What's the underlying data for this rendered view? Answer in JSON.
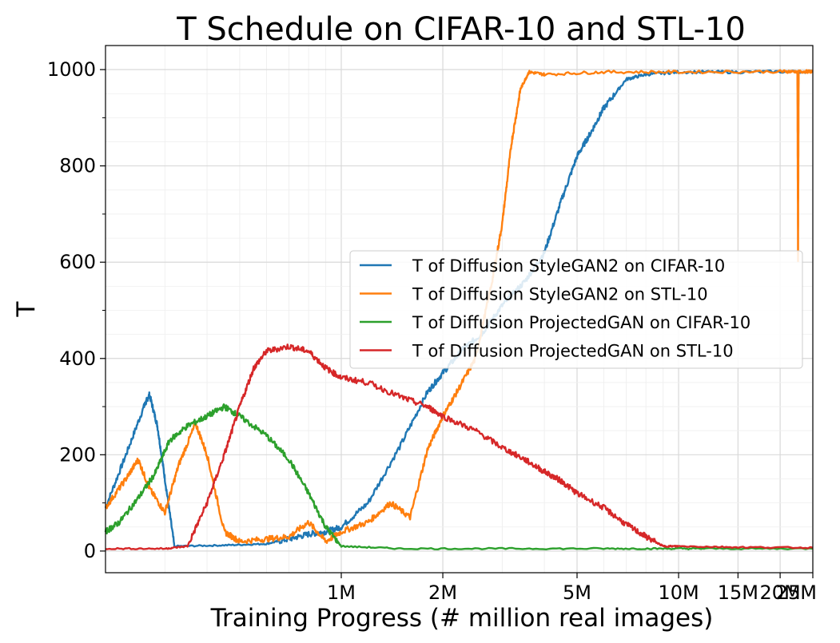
{
  "chart_data": {
    "type": "line",
    "title": "T Schedule on CIFAR-10 and STL-10",
    "xlabel": "Training Progress (# million real images)",
    "ylabel": "T",
    "xscale": "log",
    "xlim": [
      0.2,
      25
    ],
    "ylim": [
      -45,
      1050
    ],
    "grid": true,
    "legend_position": "center-right",
    "x_ticks": [
      {
        "value": 1,
        "label": "1M"
      },
      {
        "value": 2,
        "label": "2M"
      },
      {
        "value": 5,
        "label": "5M"
      },
      {
        "value": 10,
        "label": "10M"
      },
      {
        "value": 15,
        "label": "15M"
      },
      {
        "value": 20,
        "label": "20M"
      },
      {
        "value": 25,
        "label": "25M"
      }
    ],
    "y_ticks": [
      0,
      200,
      400,
      600,
      800,
      1000
    ],
    "series": [
      {
        "name": "T of Diffusion StyleGAN2 on CIFAR-10",
        "color": "#1f77b4",
        "points": [
          [
            0.2,
            90
          ],
          [
            0.23,
            200
          ],
          [
            0.26,
            300
          ],
          [
            0.27,
            325
          ],
          [
            0.285,
            260
          ],
          [
            0.3,
            150
          ],
          [
            0.32,
            10
          ],
          [
            0.45,
            12
          ],
          [
            0.6,
            15
          ],
          [
            0.7,
            25
          ],
          [
            0.8,
            35
          ],
          [
            0.9,
            40
          ],
          [
            1.0,
            50
          ],
          [
            1.2,
            100
          ],
          [
            1.5,
            220
          ],
          [
            1.8,
            330
          ],
          [
            2.0,
            370
          ],
          [
            2.3,
            420
          ],
          [
            2.6,
            450
          ],
          [
            3.0,
            510
          ],
          [
            3.5,
            560
          ],
          [
            4.0,
            620
          ],
          [
            4.5,
            730
          ],
          [
            5.0,
            820
          ],
          [
            5.5,
            870
          ],
          [
            6.0,
            920
          ],
          [
            7.0,
            980
          ],
          [
            8.0,
            990
          ],
          [
            10.0,
            995
          ],
          [
            15.0,
            995
          ],
          [
            25.0,
            996
          ]
        ]
      },
      {
        "name": "T of Diffusion StyleGAN2 on STL-10",
        "color": "#ff7f0e",
        "points": [
          [
            0.2,
            90
          ],
          [
            0.23,
            150
          ],
          [
            0.25,
            190
          ],
          [
            0.27,
            130
          ],
          [
            0.3,
            80
          ],
          [
            0.33,
            180
          ],
          [
            0.37,
            265
          ],
          [
            0.4,
            200
          ],
          [
            0.45,
            40
          ],
          [
            0.5,
            20
          ],
          [
            0.6,
            25
          ],
          [
            0.7,
            30
          ],
          [
            0.8,
            60
          ],
          [
            0.9,
            20
          ],
          [
            1.0,
            40
          ],
          [
            1.2,
            60
          ],
          [
            1.4,
            100
          ],
          [
            1.6,
            70
          ],
          [
            1.8,
            210
          ],
          [
            2.0,
            280
          ],
          [
            2.2,
            330
          ],
          [
            2.5,
            400
          ],
          [
            2.8,
            560
          ],
          [
            3.0,
            680
          ],
          [
            3.2,
            850
          ],
          [
            3.4,
            960
          ],
          [
            3.6,
            995
          ],
          [
            4.0,
            990
          ],
          [
            6.0,
            995
          ],
          [
            10.0,
            995
          ],
          [
            20.0,
            996
          ],
          [
            22.5,
            996
          ],
          [
            22.6,
            600
          ],
          [
            22.7,
            996
          ],
          [
            25.0,
            996
          ]
        ]
      },
      {
        "name": "T of Diffusion ProjectedGAN on CIFAR-10",
        "color": "#2ca02c",
        "points": [
          [
            0.2,
            40
          ],
          [
            0.22,
            60
          ],
          [
            0.25,
            110
          ],
          [
            0.28,
            160
          ],
          [
            0.31,
            230
          ],
          [
            0.35,
            260
          ],
          [
            0.4,
            280
          ],
          [
            0.45,
            300
          ],
          [
            0.5,
            280
          ],
          [
            0.6,
            240
          ],
          [
            0.7,
            190
          ],
          [
            0.8,
            120
          ],
          [
            0.9,
            50
          ],
          [
            1.0,
            10
          ],
          [
            1.5,
            5
          ],
          [
            3.0,
            5
          ],
          [
            6.0,
            5
          ],
          [
            9.0,
            5
          ],
          [
            12.0,
            5
          ],
          [
            25.0,
            5
          ]
        ]
      },
      {
        "name": "T of Diffusion ProjectedGAN on STL-10",
        "color": "#d62728",
        "points": [
          [
            0.2,
            5
          ],
          [
            0.3,
            5
          ],
          [
            0.35,
            10
          ],
          [
            0.4,
            100
          ],
          [
            0.45,
            200
          ],
          [
            0.5,
            300
          ],
          [
            0.55,
            380
          ],
          [
            0.6,
            415
          ],
          [
            0.7,
            425
          ],
          [
            0.8,
            415
          ],
          [
            0.9,
            380
          ],
          [
            1.0,
            360
          ],
          [
            1.2,
            350
          ],
          [
            1.5,
            320
          ],
          [
            1.8,
            300
          ],
          [
            2.0,
            280
          ],
          [
            2.5,
            250
          ],
          [
            3.0,
            215
          ],
          [
            3.5,
            190
          ],
          [
            4.0,
            165
          ],
          [
            4.5,
            145
          ],
          [
            5.0,
            120
          ],
          [
            6.0,
            90
          ],
          [
            7.0,
            55
          ],
          [
            8.0,
            30
          ],
          [
            9.0,
            10
          ],
          [
            10.0,
            10
          ],
          [
            15.0,
            8
          ],
          [
            25.0,
            7
          ]
        ]
      }
    ]
  }
}
